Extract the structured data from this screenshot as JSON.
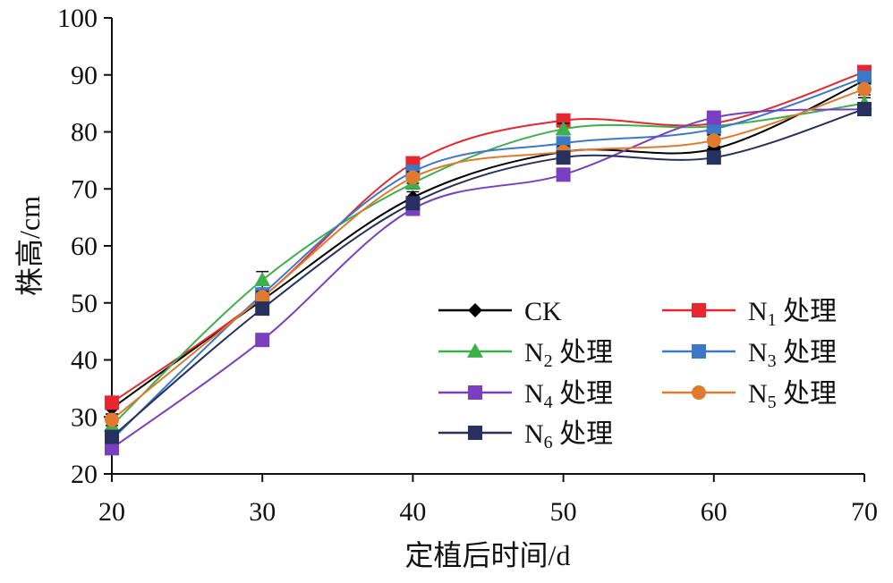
{
  "chart_data": {
    "type": "line",
    "title": "",
    "xlabel": "定植后时间/d",
    "ylabel": "株高/cm",
    "x": [
      20,
      30,
      40,
      50,
      60,
      70
    ],
    "xlim": [
      20,
      70
    ],
    "ylim": [
      20,
      100
    ],
    "xticks": [
      "20",
      "30",
      "40",
      "50",
      "60",
      "70"
    ],
    "yticks": [
      "20",
      "30",
      "40",
      "50",
      "60",
      "70",
      "80",
      "90",
      "100"
    ],
    "grid": false,
    "legend_position": "bottom-right",
    "series": [
      {
        "name": "CK",
        "legend": {
          "main": "CK",
          "sub": "",
          "suffix": ""
        },
        "color": "#000000",
        "marker": "diamond",
        "values": [
          31.5,
          50.5,
          68.5,
          76.5,
          77.0,
          89.0
        ],
        "errors": [
          1.0,
          1.0,
          1.0,
          1.0,
          1.0,
          1.0
        ]
      },
      {
        "name": "N1 处理",
        "legend": {
          "main": "N",
          "sub": "1",
          "suffix": " 处理"
        },
        "color": "#e8262d",
        "marker": "square",
        "values": [
          32.5,
          51.0,
          74.5,
          82.0,
          81.5,
          90.5
        ],
        "errors": [
          1.0,
          1.0,
          1.0,
          1.0,
          1.0,
          1.0
        ]
      },
      {
        "name": "N2 处理",
        "legend": {
          "main": "N",
          "sub": "2",
          "suffix": " 处理"
        },
        "color": "#3cb04a",
        "marker": "triangle",
        "values": [
          28.5,
          54.0,
          71.0,
          80.5,
          81.0,
          85.0
        ],
        "errors": [
          1.0,
          1.5,
          1.0,
          1.0,
          1.0,
          1.0
        ]
      },
      {
        "name": "N3 处理",
        "legend": {
          "main": "N",
          "sub": "3",
          "suffix": " 处理"
        },
        "color": "#3b78c8",
        "marker": "square",
        "values": [
          26.0,
          51.5,
          73.0,
          78.0,
          80.5,
          89.5
        ],
        "errors": [
          1.0,
          1.0,
          1.0,
          1.0,
          1.0,
          1.0
        ]
      },
      {
        "name": "N4 处理",
        "legend": {
          "main": "N",
          "sub": "4",
          "suffix": " 处理"
        },
        "color": "#7a3fc1",
        "marker": "square",
        "values": [
          24.5,
          43.5,
          66.5,
          72.5,
          82.5,
          84.0
        ],
        "errors": [
          1.0,
          1.0,
          1.0,
          1.0,
          1.0,
          1.0
        ]
      },
      {
        "name": "N5 处理",
        "legend": {
          "main": "N",
          "sub": "5",
          "suffix": " 处理"
        },
        "color": "#e07a2e",
        "marker": "circle",
        "values": [
          29.5,
          51.0,
          72.0,
          76.5,
          78.5,
          87.5
        ],
        "errors": [
          1.0,
          1.0,
          1.0,
          1.0,
          1.0,
          1.0
        ]
      },
      {
        "name": "N6 处理",
        "legend": {
          "main": "N",
          "sub": "6",
          "suffix": " 处理"
        },
        "color": "#27315f",
        "marker": "square",
        "values": [
          26.5,
          49.0,
          67.5,
          75.5,
          75.5,
          84.0
        ],
        "errors": [
          1.0,
          1.0,
          1.0,
          1.0,
          1.0,
          1.0
        ]
      }
    ]
  }
}
